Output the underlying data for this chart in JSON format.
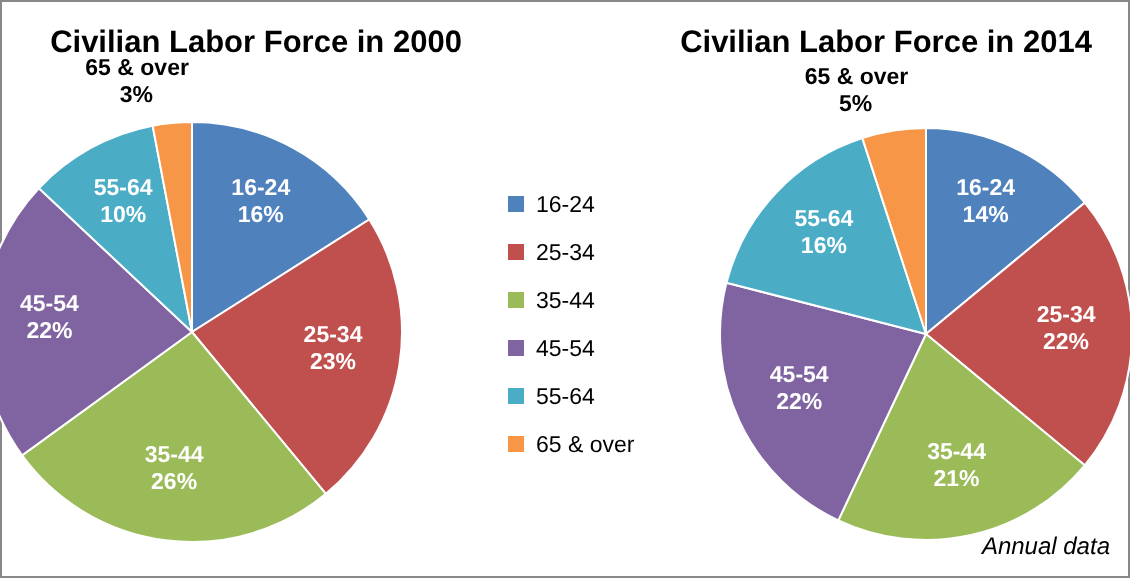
{
  "chart_data": [
    {
      "type": "pie",
      "title": "Civilian Labor Force in 2000",
      "categories": [
        "16-24",
        "25-34",
        "35-44",
        "45-54",
        "55-64",
        "65 & over"
      ],
      "values": [
        16,
        23,
        26,
        22,
        10,
        3
      ],
      "value_labels": [
        "16%",
        "23%",
        "26%",
        "22%",
        "10%",
        "3%"
      ],
      "colors": [
        "#4f81bd",
        "#c0504d",
        "#9bbb59",
        "#8064a2",
        "#4bacc6",
        "#f79646"
      ],
      "legend": "right"
    },
    {
      "type": "pie",
      "title": "Civilian Labor Force in 2014",
      "categories": [
        "16-24",
        "25-34",
        "35-44",
        "45-54",
        "55-64",
        "65 & over"
      ],
      "values": [
        14,
        22,
        21,
        22,
        16,
        5
      ],
      "value_labels": [
        "14%",
        "22%",
        "21%",
        "22%",
        "16%",
        "5%"
      ],
      "colors": [
        "#4f81bd",
        "#c0504d",
        "#9bbb59",
        "#8064a2",
        "#4bacc6",
        "#f79646"
      ],
      "annotations": [
        "Annual data"
      ]
    }
  ]
}
